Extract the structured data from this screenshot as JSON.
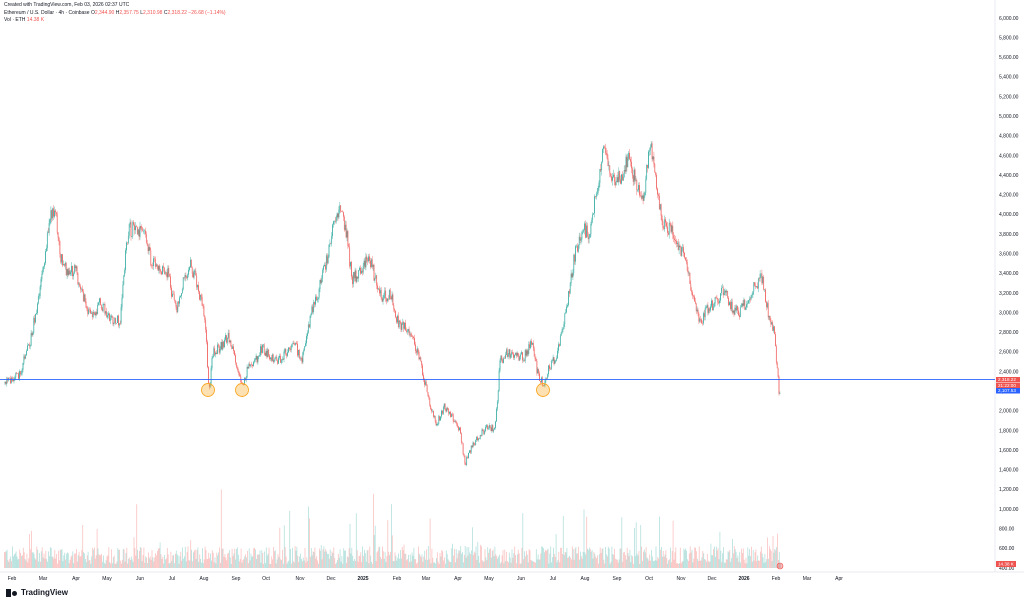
{
  "header": {
    "created_line": "Created with TradingView.com, Feb 03, 2026 02:37 UTC",
    "symbol": "Ethereum / U.S. Dollar · 4h · Coinbase",
    "o_label": "O",
    "o_value": "2,344.90",
    "h_label": "H",
    "h_value": "2,357.75",
    "l_label": "L",
    "l_value": "2,310.98",
    "c_label": "C",
    "c_value": "2,318.22",
    "change": "−26.68 (−1.14%)",
    "vol_label": "Vol · ETH",
    "vol_value": "14.38 K"
  },
  "footer": {
    "brand": "TradingView"
  },
  "colors": {
    "up": "#26a69a",
    "down": "#ef5350",
    "hline": "#2962ff",
    "marker": "#f9a825"
  },
  "chart_data": {
    "type": "candlestick",
    "price_axis": {
      "ylim": [
        0,
        6000
      ],
      "tick_labels": [
        "6,000.00",
        "5,800.00",
        "5,600.00",
        "5,400.00",
        "5,200.00",
        "5,000.00",
        "4,800.00",
        "4,600.00",
        "4,400.00",
        "4,200.00",
        "4,000.00",
        "3,800.00",
        "3,600.00",
        "3,400.00",
        "3,200.00",
        "3,000.00",
        "2,800.00",
        "2,600.00",
        "2,400.00",
        "2,200.00",
        "2,000.00",
        "1,800.00",
        "1,600.00",
        "1,400.00",
        "1,200.00",
        "1,000.00",
        "800.00",
        "600.00",
        "400.00"
      ],
      "tick_values": [
        6000,
        5800,
        5600,
        5400,
        5200,
        5000,
        4800,
        4600,
        4400,
        4200,
        4000,
        3800,
        3600,
        3400,
        3200,
        3000,
        2800,
        2600,
        2400,
        2200,
        2000,
        1800,
        1600,
        1400,
        1200,
        1000,
        800,
        600,
        400
      ]
    },
    "time_axis": {
      "labels": [
        "Feb",
        "Mar",
        "Apr",
        "May",
        "Jun",
        "Jul",
        "Aug",
        "Sep",
        "Oct",
        "Nov",
        "Dec",
        "2025",
        "Feb",
        "Mar",
        "Apr",
        "May",
        "Jun",
        "Jul",
        "Aug",
        "Sep",
        "Oct",
        "Nov",
        "Dec",
        "2026",
        "Feb",
        "Mar",
        "Apr"
      ],
      "bold_labels": [
        "2025",
        "2026"
      ]
    },
    "series": [
      {
        "x": [
          "Feb",
          "Mar",
          "Apr",
          "May",
          "Jun",
          "Jul",
          "Aug",
          "Sep",
          "Oct",
          "Nov",
          "Dec",
          "2025",
          "Feb",
          "Mar",
          "Apr",
          "May",
          "Jun",
          "Jul",
          "Aug",
          "Sep",
          "Oct",
          "Nov",
          "Dec",
          "2026",
          "Feb"
        ],
        "y": [
          2310,
          3400,
          3550,
          2950,
          3800,
          3400,
          2950,
          2300,
          2450,
          2500,
          3950,
          3450,
          2700,
          2050,
          1550,
          2550,
          2500,
          2900,
          4100,
          4400,
          4150,
          3300,
          2950,
          3200,
          2318
        ]
      }
    ],
    "horizontal_level": 2318.22,
    "price_tags": [
      "2,318.22",
      "21:22:00",
      "2,107.53"
    ],
    "volume_tag": "14.38 K",
    "markers": [
      "Aug",
      "Sep",
      "Jul"
    ]
  }
}
